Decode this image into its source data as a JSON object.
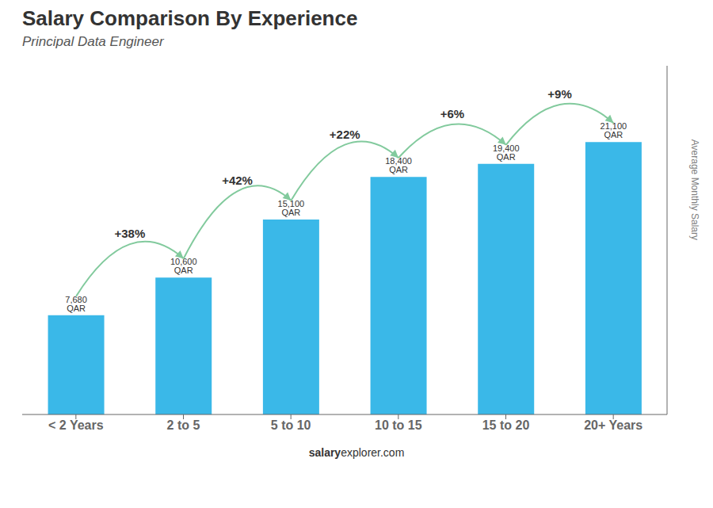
{
  "chart_data": {
    "type": "bar",
    "title": "Salary Comparison By Experience",
    "subtitle": "Principal Data Engineer",
    "categories": [
      "< 2 Years",
      "2 to 5",
      "5 to 10",
      "10 to 15",
      "15 to 20",
      "20+ Years"
    ],
    "values": [
      7680,
      10600,
      15100,
      18400,
      19400,
      21100
    ],
    "value_labels": [
      "7,680 QAR",
      "10,600 QAR",
      "15,100 QAR",
      "18,400 QAR",
      "19,400 QAR",
      "21,100 QAR"
    ],
    "data_labels": true,
    "color": "#3ab8e8",
    "ylabel": "Average Monthly Salary",
    "ylim": [
      0,
      27000
    ],
    "tick_labels": "x",
    "grid": false,
    "annotations": [
      "+38%",
      "+42%",
      "+22%",
      "+6%",
      "+9%"
    ],
    "footer": [
      "salary",
      "explorer.com"
    ]
  }
}
